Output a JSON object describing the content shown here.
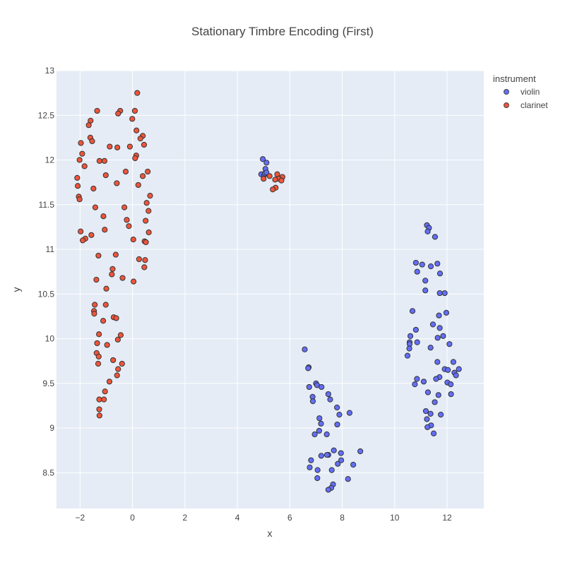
{
  "chart_data": {
    "type": "scatter",
    "title": "Stationary Timbre Encoding (First)",
    "xlabel": "x",
    "ylabel": "y",
    "xlim": [
      -2.9,
      13.4
    ],
    "ylim": [
      8.1,
      13.0
    ],
    "xticks": [
      -2,
      0,
      2,
      4,
      6,
      8,
      10,
      12
    ],
    "yticks": [
      8.5,
      9,
      9.5,
      10,
      10.5,
      11,
      11.5,
      12,
      12.5,
      13
    ],
    "xtick_labels": [
      "−2",
      "0",
      "2",
      "4",
      "6",
      "8",
      "10",
      "12"
    ],
    "ytick_labels": [
      "8.5",
      "9",
      "9.5",
      "10",
      "10.5",
      "11",
      "11.5",
      "12",
      "12.5",
      "13"
    ],
    "grid": true,
    "legend": {
      "title": "instrument",
      "placement": "top-right outside"
    },
    "series": [
      {
        "name": "violin",
        "color": "#636efa",
        "points": [
          [
            4.97,
            12.01
          ],
          [
            5.11,
            11.97
          ],
          [
            4.91,
            11.84
          ],
          [
            5.02,
            11.83
          ],
          [
            5.07,
            11.9
          ],
          [
            5.05,
            11.85
          ],
          [
            5.11,
            11.86
          ],
          [
            11.23,
            11.27
          ],
          [
            11.31,
            11.24
          ],
          [
            11.26,
            11.2
          ],
          [
            11.54,
            11.14
          ],
          [
            10.81,
            10.85
          ],
          [
            11.05,
            10.83
          ],
          [
            11.38,
            10.81
          ],
          [
            11.63,
            10.84
          ],
          [
            11.73,
            10.73
          ],
          [
            10.86,
            10.75
          ],
          [
            11.17,
            10.65
          ],
          [
            11.17,
            10.54
          ],
          [
            11.72,
            10.51
          ],
          [
            11.91,
            10.51
          ],
          [
            10.68,
            10.31
          ],
          [
            11.97,
            10.29
          ],
          [
            11.69,
            10.26
          ],
          [
            11.46,
            10.16
          ],
          [
            11.72,
            10.12
          ],
          [
            10.81,
            10.1
          ],
          [
            10.6,
            10.03
          ],
          [
            11.64,
            10.01
          ],
          [
            11.85,
            10.03
          ],
          [
            10.57,
            9.96
          ],
          [
            10.86,
            9.96
          ],
          [
            10.57,
            9.94
          ],
          [
            12.09,
            9.94
          ],
          [
            10.56,
            9.89
          ],
          [
            11.37,
            9.9
          ],
          [
            10.49,
            9.81
          ],
          [
            11.63,
            9.74
          ],
          [
            12.24,
            9.74
          ],
          [
            12.45,
            9.66
          ],
          [
            11.91,
            9.66
          ],
          [
            12.03,
            9.65
          ],
          [
            12.28,
            9.62
          ],
          [
            12.34,
            9.59
          ],
          [
            11.71,
            9.57
          ],
          [
            11.58,
            9.55
          ],
          [
            10.85,
            9.55
          ],
          [
            11.11,
            9.52
          ],
          [
            12.01,
            9.51
          ],
          [
            12.14,
            9.49
          ],
          [
            10.77,
            9.49
          ],
          [
            11.27,
            9.4
          ],
          [
            11.67,
            9.37
          ],
          [
            12.15,
            9.38
          ],
          [
            11.53,
            9.29
          ],
          [
            11.19,
            9.19
          ],
          [
            11.37,
            9.16
          ],
          [
            11.76,
            9.15
          ],
          [
            11.23,
            9.1
          ],
          [
            11.39,
            9.03
          ],
          [
            11.25,
            9.01
          ],
          [
            11.49,
            8.94
          ],
          [
            6.57,
            9.88
          ],
          [
            6.72,
            9.68
          ],
          [
            6.7,
            9.67
          ],
          [
            7.0,
            9.5
          ],
          [
            7.04,
            9.48
          ],
          [
            7.21,
            9.46
          ],
          [
            6.74,
            9.46
          ],
          [
            7.47,
            9.38
          ],
          [
            6.87,
            9.35
          ],
          [
            7.54,
            9.32
          ],
          [
            6.88,
            9.3
          ],
          [
            7.8,
            9.23
          ],
          [
            7.89,
            9.15
          ],
          [
            8.28,
            9.17
          ],
          [
            7.13,
            9.11
          ],
          [
            7.19,
            9.05
          ],
          [
            7.81,
            9.04
          ],
          [
            7.12,
            8.97
          ],
          [
            6.95,
            8.93
          ],
          [
            7.41,
            8.93
          ],
          [
            7.68,
            8.75
          ],
          [
            7.95,
            8.72
          ],
          [
            8.69,
            8.74
          ],
          [
            7.2,
            8.69
          ],
          [
            7.47,
            8.7
          ],
          [
            7.42,
            8.7
          ],
          [
            6.81,
            8.64
          ],
          [
            7.96,
            8.64
          ],
          [
            7.83,
            8.6
          ],
          [
            8.42,
            8.59
          ],
          [
            6.76,
            8.56
          ],
          [
            7.06,
            8.53
          ],
          [
            7.6,
            8.53
          ],
          [
            7.05,
            8.44
          ],
          [
            8.22,
            8.43
          ],
          [
            7.65,
            8.37
          ],
          [
            7.58,
            8.33
          ],
          [
            7.47,
            8.31
          ]
        ]
      },
      {
        "name": "clarinet",
        "color": "#ef553b",
        "points": [
          [
            5.52,
            11.84
          ],
          [
            5.72,
            11.81
          ],
          [
            5.23,
            11.82
          ],
          [
            5.58,
            11.79
          ],
          [
            5.44,
            11.78
          ],
          [
            5.68,
            11.77
          ],
          [
            5.0,
            11.79
          ],
          [
            5.46,
            11.69
          ],
          [
            5.35,
            11.67
          ],
          [
            0.18,
            12.75
          ],
          [
            -1.35,
            12.55
          ],
          [
            -0.47,
            12.55
          ],
          [
            0.09,
            12.55
          ],
          [
            -0.55,
            12.52
          ],
          [
            -1.6,
            12.44
          ],
          [
            -0.01,
            12.46
          ],
          [
            -1.67,
            12.39
          ],
          [
            0.15,
            12.33
          ],
          [
            -1.61,
            12.25
          ],
          [
            0.39,
            12.27
          ],
          [
            0.3,
            12.24
          ],
          [
            -1.54,
            12.21
          ],
          [
            -1.97,
            12.19
          ],
          [
            0.44,
            12.17
          ],
          [
            -0.87,
            12.15
          ],
          [
            -0.58,
            12.14
          ],
          [
            -0.1,
            12.15
          ],
          [
            -1.92,
            12.07
          ],
          [
            0.14,
            12.05
          ],
          [
            -2.02,
            12.0
          ],
          [
            0.1,
            12.02
          ],
          [
            -1.07,
            11.99
          ],
          [
            -1.26,
            11.99
          ],
          [
            -1.83,
            11.93
          ],
          [
            -0.26,
            11.87
          ],
          [
            0.58,
            11.87
          ],
          [
            -1.02,
            11.83
          ],
          [
            0.39,
            11.82
          ],
          [
            -2.11,
            11.8
          ],
          [
            -0.6,
            11.74
          ],
          [
            0.22,
            11.72
          ],
          [
            -2.09,
            11.71
          ],
          [
            -1.49,
            11.68
          ],
          [
            0.67,
            11.6
          ],
          [
            -2.05,
            11.59
          ],
          [
            -2.02,
            11.56
          ],
          [
            0.54,
            11.52
          ],
          [
            -1.42,
            11.47
          ],
          [
            -0.31,
            11.47
          ],
          [
            0.61,
            11.43
          ],
          [
            -1.11,
            11.37
          ],
          [
            -0.22,
            11.33
          ],
          [
            0.5,
            11.32
          ],
          [
            -0.14,
            11.26
          ],
          [
            -1.06,
            11.22
          ],
          [
            -1.98,
            11.2
          ],
          [
            0.62,
            11.19
          ],
          [
            -1.57,
            11.16
          ],
          [
            -1.8,
            11.12
          ],
          [
            -1.9,
            11.1
          ],
          [
            0.03,
            11.11
          ],
          [
            0.46,
            11.09
          ],
          [
            0.51,
            11.08
          ],
          [
            -1.3,
            10.93
          ],
          [
            -0.64,
            10.94
          ],
          [
            0.25,
            10.89
          ],
          [
            0.48,
            10.88
          ],
          [
            0.45,
            10.8
          ],
          [
            -0.76,
            10.78
          ],
          [
            -0.79,
            10.72
          ],
          [
            -0.38,
            10.68
          ],
          [
            -1.38,
            10.66
          ],
          [
            0.04,
            10.64
          ],
          [
            -1.0,
            10.56
          ],
          [
            -1.44,
            10.38
          ],
          [
            -1.02,
            10.38
          ],
          [
            -1.47,
            10.31
          ],
          [
            -1.46,
            10.28
          ],
          [
            -0.72,
            10.24
          ],
          [
            -0.62,
            10.23
          ],
          [
            -1.12,
            10.2
          ],
          [
            -0.45,
            10.04
          ],
          [
            -1.28,
            10.05
          ],
          [
            -0.56,
            9.99
          ],
          [
            -1.35,
            9.95
          ],
          [
            -0.97,
            9.93
          ],
          [
            -1.37,
            9.84
          ],
          [
            -1.29,
            9.8
          ],
          [
            -0.74,
            9.76
          ],
          [
            -1.31,
            9.72
          ],
          [
            -0.4,
            9.72
          ],
          [
            -0.55,
            9.66
          ],
          [
            -0.59,
            9.59
          ],
          [
            -0.88,
            9.52
          ],
          [
            -1.05,
            9.41
          ],
          [
            -1.27,
            9.32
          ],
          [
            -1.09,
            9.32
          ],
          [
            -1.27,
            9.21
          ],
          [
            -1.26,
            9.14
          ]
        ]
      }
    ]
  }
}
